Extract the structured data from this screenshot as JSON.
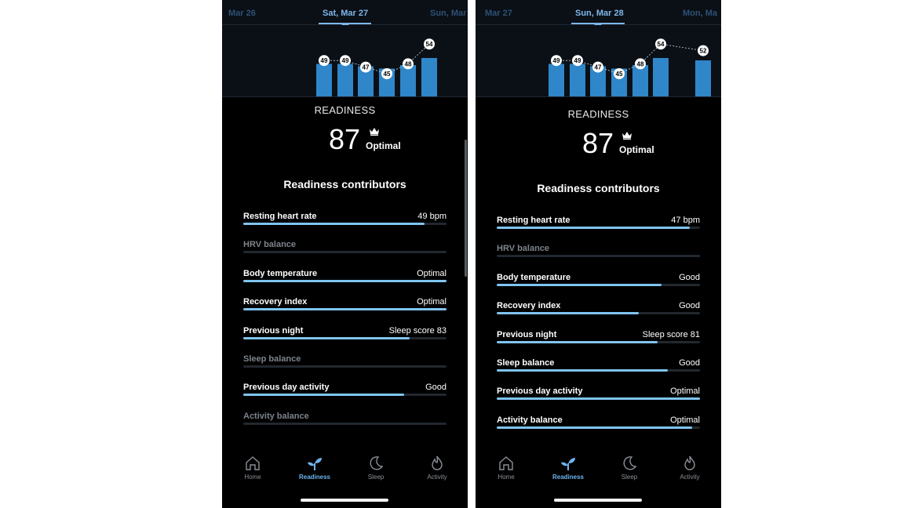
{
  "screens": [
    {
      "dates": {
        "prev": "Mar 26",
        "current": "Sat, Mar 27",
        "next": "Sun, Mar"
      },
      "chart": {
        "bars": [
          {
            "value": 49,
            "label": "49"
          },
          {
            "value": 49,
            "label": "49"
          },
          {
            "value": 47,
            "label": "47"
          },
          {
            "value": 45,
            "label": "45"
          },
          {
            "value": 48,
            "label": "48"
          },
          {
            "value": 54,
            "label": "54"
          }
        ]
      },
      "readiness_label": "READINESS",
      "score": "87",
      "score_status": "Optimal",
      "contributors_title": "Readiness contributors",
      "contributors": [
        {
          "label": "Resting heart rate",
          "value": "49 bpm",
          "level": 0.89,
          "dim": false
        },
        {
          "label": "HRV balance",
          "value": "",
          "level": 0,
          "dim": true
        },
        {
          "label": "Body temperature",
          "value": "Optimal",
          "level": 1.0,
          "dim": false
        },
        {
          "label": "Recovery index",
          "value": "Optimal",
          "level": 1.0,
          "dim": false
        },
        {
          "label": "Previous night",
          "value": "Sleep score 83",
          "level": 0.82,
          "dim": false
        },
        {
          "label": "Sleep balance",
          "value": "",
          "level": 0,
          "dim": true
        },
        {
          "label": "Previous day activity",
          "value": "Good",
          "level": 0.79,
          "dim": false
        },
        {
          "label": "Activity balance",
          "value": "",
          "level": 0,
          "dim": true
        }
      ],
      "tabs": [
        {
          "label": "Home",
          "icon": "home-icon"
        },
        {
          "label": "Readiness",
          "icon": "sprout-icon"
        },
        {
          "label": "Sleep",
          "icon": "moon-icon"
        },
        {
          "label": "Activity",
          "icon": "flame-icon"
        }
      ],
      "active_tab": "Readiness"
    },
    {
      "dates": {
        "prev": "Mar 27",
        "current": "Sun, Mar 28",
        "next": "Mon, Ma"
      },
      "chart": {
        "bars": [
          {
            "value": 49,
            "label": "49"
          },
          {
            "value": 49,
            "label": "49"
          },
          {
            "value": 47,
            "label": "47"
          },
          {
            "value": 45,
            "label": "45"
          },
          {
            "value": 48,
            "label": "48"
          },
          {
            "value": 54,
            "label": "54"
          },
          {
            "value": 52,
            "label": "52"
          }
        ]
      },
      "readiness_label": "READINESS",
      "score": "87",
      "score_status": "Optimal",
      "contributors_title": "Readiness contributors",
      "contributors": [
        {
          "label": "Resting heart rate",
          "value": "47 bpm",
          "level": 0.95,
          "dim": false
        },
        {
          "label": "HRV balance",
          "value": "",
          "level": 0,
          "dim": true
        },
        {
          "label": "Body temperature",
          "value": "Good",
          "level": 0.81,
          "dim": false
        },
        {
          "label": "Recovery index",
          "value": "Good",
          "level": 0.7,
          "dim": false
        },
        {
          "label": "Previous night",
          "value": "Sleep score 81",
          "level": 0.79,
          "dim": false
        },
        {
          "label": "Sleep balance",
          "value": "Good",
          "level": 0.84,
          "dim": false
        },
        {
          "label": "Previous day activity",
          "value": "Optimal",
          "level": 1.0,
          "dim": false
        },
        {
          "label": "Activity balance",
          "value": "Optimal",
          "level": 0.96,
          "dim": false
        }
      ],
      "tabs": [
        {
          "label": "Home",
          "icon": "home-icon"
        },
        {
          "label": "Readiness",
          "icon": "sprout-icon"
        },
        {
          "label": "Sleep",
          "icon": "moon-icon"
        },
        {
          "label": "Activity",
          "icon": "flame-icon"
        }
      ],
      "active_tab": "Readiness"
    }
  ],
  "colors": {
    "accent": "#7fb6ea",
    "bar": "#2f86c9",
    "progress": "#7fc4f0",
    "track": "#22282f",
    "background": "#000000"
  }
}
